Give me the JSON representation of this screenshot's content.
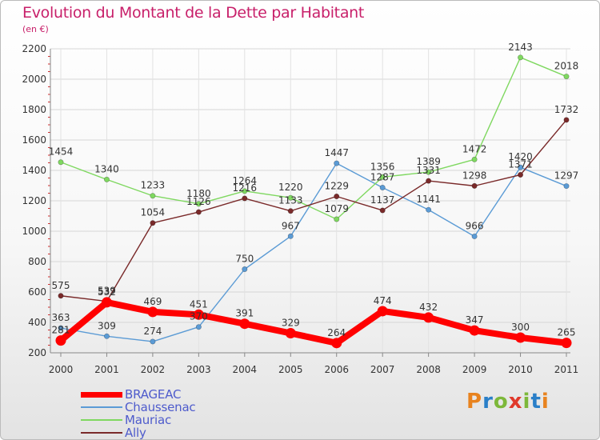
{
  "title": "Evolution du Montant de la Dette par Habitant",
  "subtitle": "(en €)",
  "brand": {
    "text": "Proxiti",
    "letter_colors": [
      "#e8831f",
      "#2a7fc8",
      "#7db83a",
      "#e0392b",
      "#7db83a",
      "#2a7fc8",
      "#e8831f"
    ]
  },
  "chart_data": {
    "type": "line",
    "title": "Evolution du Montant de la Dette par Habitant",
    "ylabel": "(en €)",
    "x": [
      "2000",
      "2001",
      "2002",
      "2003",
      "2004",
      "2005",
      "2006",
      "2007",
      "2008",
      "2009",
      "2010",
      "2011"
    ],
    "ylim": [
      200,
      2200
    ],
    "yticks": [
      200,
      400,
      600,
      800,
      1000,
      1200,
      1400,
      1600,
      1800,
      2000,
      2200
    ],
    "ytick_labels": [
      "200",
      "400",
      "600",
      "800",
      "1000",
      "1200",
      "1400",
      "1600",
      "1800",
      "2000",
      "2200"
    ],
    "grid": true,
    "legend_position": "bottom-left",
    "series": [
      {
        "name": "BRAGEAC",
        "color": "#ff0000",
        "values": [
          281,
          532,
          469,
          451,
          391,
          329,
          264,
          474,
          432,
          347,
          300,
          265
        ],
        "labels": [
          "281",
          "532",
          "469",
          "451",
          "391",
          "329",
          "264",
          "474",
          "432",
          "347",
          "300",
          "265"
        ]
      },
      {
        "name": "Chaussenac",
        "color": "#5b9bd5",
        "values": [
          363,
          309,
          274,
          370,
          750,
          967,
          1447,
          1287,
          1141,
          966,
          1420,
          1297
        ],
        "labels": [
          "363",
          "309",
          "274",
          "370",
          "750",
          "967",
          "1447",
          "1287",
          "1141",
          "966",
          "1420",
          "1297"
        ]
      },
      {
        "name": "Mauriac",
        "color": "#7fd860",
        "values": [
          1454,
          1340,
          1233,
          1180,
          1264,
          1220,
          1079,
          1356,
          1389,
          1472,
          2143,
          2018
        ],
        "labels": [
          "1454",
          "1340",
          "1233",
          "1180",
          "1264",
          "1220",
          "1079",
          "1356",
          "1389",
          "1472",
          "2143",
          "2018"
        ]
      },
      {
        "name": "Ally",
        "color": "#7a2a2a",
        "values": [
          575,
          539,
          1054,
          1126,
          1216,
          1133,
          1229,
          1137,
          1331,
          1298,
          1371,
          1732
        ],
        "labels": [
          "575",
          "539",
          "1054",
          "1126",
          "1216",
          "1133",
          "1229",
          "1137",
          "1331",
          "1298",
          "1371",
          "1732"
        ]
      }
    ]
  }
}
